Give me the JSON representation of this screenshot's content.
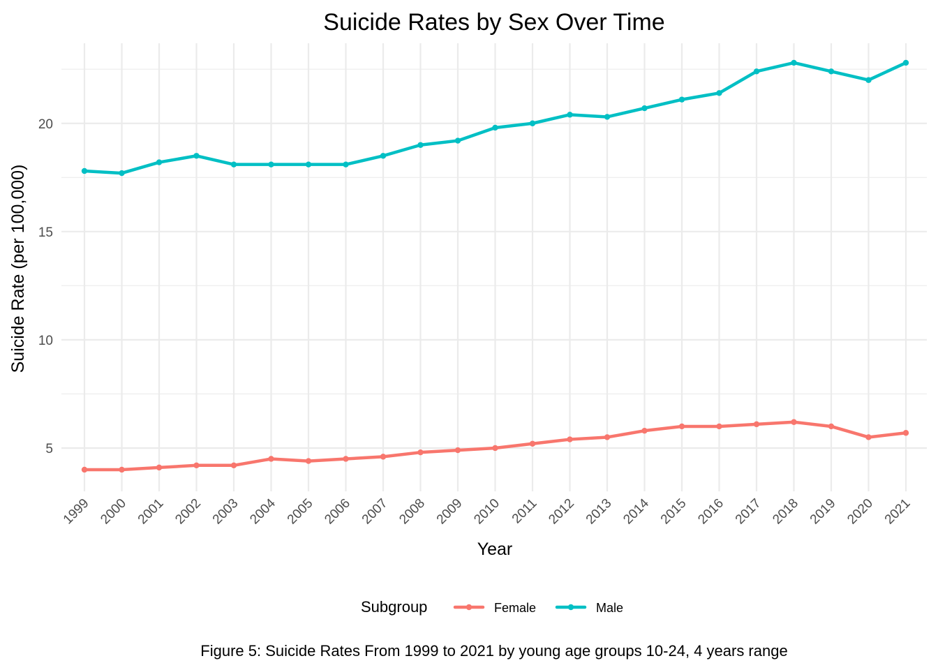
{
  "chart_data": {
    "type": "line",
    "title": "Suicide Rates by Sex Over Time",
    "xlabel": "Year",
    "ylabel": "Suicide Rate (per 100,000)",
    "categories": [
      "1999",
      "2000",
      "2001",
      "2002",
      "2003",
      "2004",
      "2005",
      "2006",
      "2007",
      "2008",
      "2009",
      "2010",
      "2011",
      "2012",
      "2013",
      "2014",
      "2015",
      "2016",
      "2017",
      "2018",
      "2019",
      "2020",
      "2021"
    ],
    "ylim": [
      3.0,
      23.7
    ],
    "yticks": [
      5,
      10,
      15,
      20
    ],
    "grid": true,
    "legend": {
      "title": "Subgroup",
      "position": "bottom"
    },
    "series": [
      {
        "name": "Female",
        "color": "#F8766D",
        "values": [
          4.0,
          4.0,
          4.1,
          4.2,
          4.2,
          4.5,
          4.4,
          4.5,
          4.6,
          4.8,
          4.9,
          5.0,
          5.2,
          5.4,
          5.5,
          5.8,
          6.0,
          6.0,
          6.1,
          6.2,
          6.0,
          5.5,
          5.7
        ]
      },
      {
        "name": "Male",
        "color": "#00BFC4",
        "values": [
          17.8,
          17.7,
          18.2,
          18.5,
          18.1,
          18.1,
          18.1,
          18.1,
          18.5,
          19.0,
          19.2,
          19.8,
          20.0,
          20.4,
          20.3,
          20.7,
          21.1,
          21.4,
          22.4,
          22.8,
          22.4,
          22.0,
          22.8
        ]
      }
    ],
    "caption": "Figure 5: Suicide Rates From 1999 to 2021 by young age groups 10-24, 4 years range"
  }
}
